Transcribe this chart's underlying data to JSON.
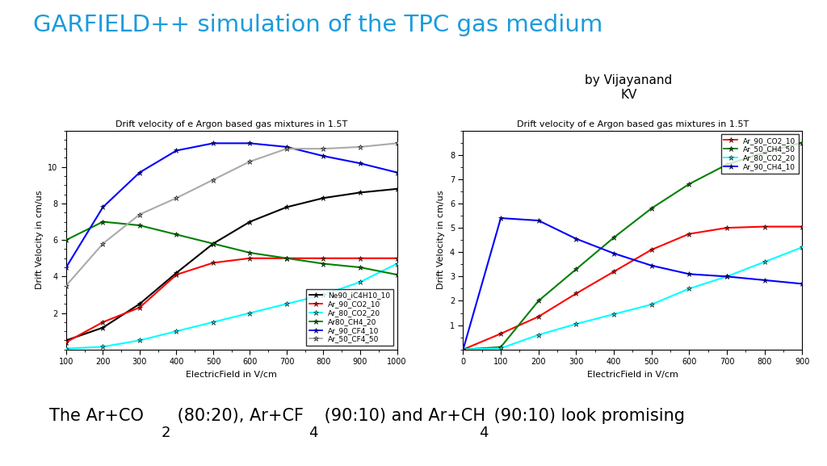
{
  "title": "GARFIELD++ simulation of the TPC gas medium",
  "title_color": "#1a9bdc",
  "subtitle": "by Vijayanand\nKV",
  "plot1": {
    "title": "Drift velocity of e Argon based gas mixtures in 1.5T",
    "xlabel": "ElectricField in V/cm",
    "ylabel": "Drift Velocity in cm/us",
    "xlim": [
      100,
      1000
    ],
    "ylim": [
      0,
      12
    ],
    "xticks": [
      100,
      200,
      300,
      400,
      500,
      600,
      700,
      800,
      900,
      1000
    ],
    "yticks": [
      2,
      4,
      6,
      8,
      10
    ],
    "series": [
      {
        "label": "Ne90_iC4H10_10",
        "color": "black",
        "x": [
          100,
          200,
          300,
          400,
          500,
          600,
          700,
          800,
          900,
          1000
        ],
        "y": [
          0.5,
          1.2,
          2.5,
          4.2,
          5.8,
          7.0,
          7.8,
          8.3,
          8.6,
          8.8
        ]
      },
      {
        "label": "Ar_90_CO2_10",
        "color": "red",
        "x": [
          100,
          200,
          300,
          400,
          500,
          600,
          700,
          800,
          900,
          1000
        ],
        "y": [
          0.4,
          1.5,
          2.3,
          4.1,
          4.75,
          5.0,
          5.0,
          5.0,
          5.0,
          5.0
        ]
      },
      {
        "label": "Ar_80_CO2_20",
        "color": "cyan",
        "x": [
          100,
          200,
          300,
          400,
          500,
          600,
          700,
          800,
          900,
          1000
        ],
        "y": [
          0.05,
          0.15,
          0.5,
          1.0,
          1.5,
          2.0,
          2.5,
          3.0,
          3.7,
          4.7
        ]
      },
      {
        "label": "Ar80_CH4_20",
        "color": "green",
        "x": [
          100,
          200,
          300,
          400,
          500,
          600,
          700,
          800,
          900,
          1000
        ],
        "y": [
          6.0,
          7.0,
          6.8,
          6.3,
          5.8,
          5.3,
          5.0,
          4.7,
          4.5,
          4.1
        ]
      },
      {
        "label": "Ar_90_CF4_10",
        "color": "blue",
        "x": [
          100,
          200,
          300,
          400,
          500,
          600,
          700,
          800,
          900,
          1000
        ],
        "y": [
          4.5,
          7.8,
          9.7,
          10.9,
          11.3,
          11.3,
          11.1,
          10.6,
          10.2,
          9.7
        ]
      },
      {
        "label": "Ar_50_CF4_50",
        "color": "#aaaaaa",
        "x": [
          100,
          200,
          300,
          400,
          500,
          600,
          700,
          800,
          900,
          1000
        ],
        "y": [
          3.5,
          5.8,
          7.4,
          8.3,
          9.3,
          10.3,
          11.0,
          11.0,
          11.1,
          11.3
        ]
      }
    ]
  },
  "plot2": {
    "title": "Drift velocity of e Argon based gas mixtures in 1.5T",
    "xlabel": "ElectricField in V/cm",
    "ylabel": "Drift Velocity in cm/us",
    "xlim": [
      0,
      900
    ],
    "ylim": [
      0,
      9
    ],
    "xticks": [
      0,
      100,
      200,
      300,
      400,
      500,
      600,
      700,
      800,
      900
    ],
    "yticks": [
      1,
      2,
      3,
      4,
      5,
      6,
      7,
      8
    ],
    "series": [
      {
        "label": "Ar_90_CO2_10",
        "color": "red",
        "x": [
          0,
          100,
          200,
          300,
          400,
          500,
          600,
          700,
          800,
          900
        ],
        "y": [
          0.0,
          0.65,
          1.35,
          2.3,
          3.2,
          4.1,
          4.75,
          5.0,
          5.05,
          5.05
        ]
      },
      {
        "label": "Ar_50_CH4_50",
        "color": "green",
        "x": [
          0,
          100,
          200,
          300,
          400,
          500,
          600,
          700,
          800,
          900
        ],
        "y": [
          0.0,
          0.1,
          2.0,
          3.3,
          4.6,
          5.8,
          6.8,
          7.6,
          8.1,
          8.5
        ]
      },
      {
        "label": "Ar_80_CO2_20",
        "color": "cyan",
        "x": [
          0,
          100,
          200,
          300,
          400,
          500,
          600,
          700,
          800,
          900
        ],
        "y": [
          0.0,
          0.05,
          0.6,
          1.05,
          1.45,
          1.85,
          2.5,
          3.0,
          3.6,
          4.2
        ]
      },
      {
        "label": "Ar_90_CH4_10",
        "color": "blue",
        "x": [
          0,
          100,
          200,
          300,
          400,
          500,
          600,
          700,
          800,
          900
        ],
        "y": [
          0.0,
          5.4,
          5.3,
          4.55,
          3.95,
          3.45,
          3.1,
          3.0,
          2.85,
          2.7
        ]
      }
    ]
  },
  "bottom": {
    "line1_parts": [
      "The Ar+CO",
      "  (80:20), Ar+CF",
      "  (90:10) and Ar+CH",
      "  (90:10) look promising"
    ],
    "subs": [
      "2",
      "4",
      "4"
    ],
    "fontsize": 15
  }
}
